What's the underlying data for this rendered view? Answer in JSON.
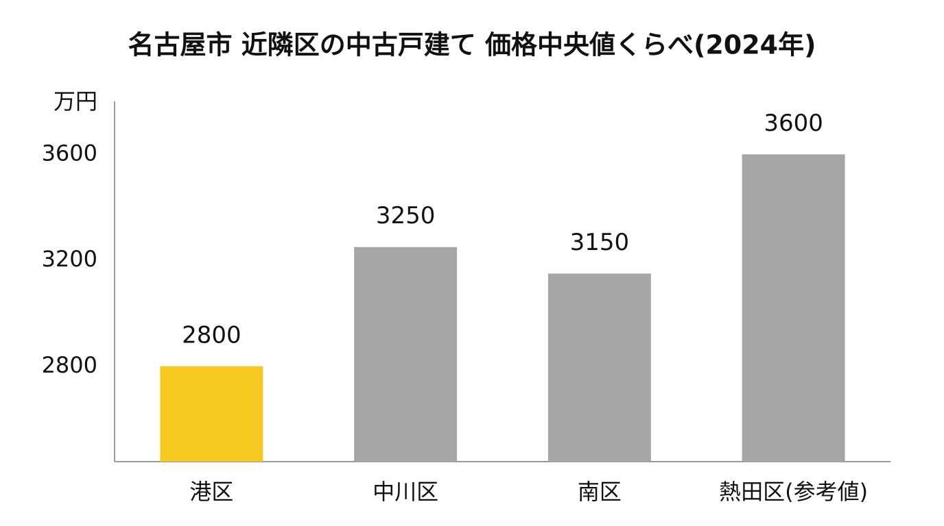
{
  "chart_data": {
    "type": "bar",
    "title": "名古屋市 近隣区の中古戸建て 価格中央値くらべ(2024年)",
    "y_label": "万円",
    "categories": [
      "港区",
      "中川区",
      "南区",
      "熱田区(参考値)"
    ],
    "values": [
      2800,
      3250,
      3150,
      3600
    ],
    "colors": [
      "#f5c91f",
      "#a6a6a6",
      "#a6a6a6",
      "#a6a6a6"
    ],
    "ylim": [
      2440,
      3800
    ],
    "yticks": [
      2800,
      3200,
      3600
    ],
    "grid": false
  }
}
